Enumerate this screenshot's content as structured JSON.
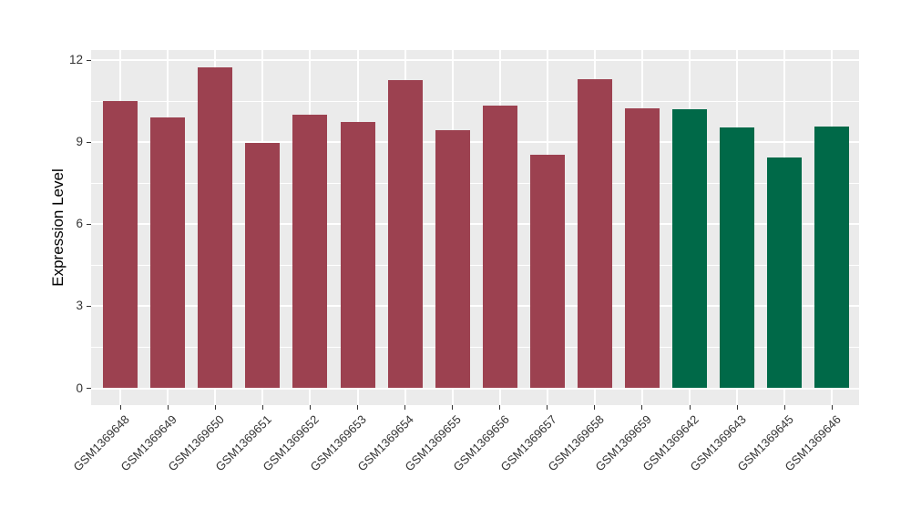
{
  "chart_data": {
    "type": "bar",
    "title": "",
    "xlabel": "",
    "ylabel": "Expression Level",
    "ylim": [
      0,
      12
    ],
    "yticks": [
      0,
      3,
      6,
      9,
      12
    ],
    "yticks_minor": [
      1.5,
      4.5,
      7.5,
      10.5
    ],
    "grid": true,
    "legend_position": "none",
    "panel_background": "#EBEBEB",
    "grid_color": "#FFFFFF",
    "tick_mark_color": "#333333",
    "tick_label_color": "#333333",
    "axis_title_color": "#000000",
    "palette": {
      "group1": "#9C4150",
      "group2": "#006948"
    },
    "categories": [
      "GSM1369648",
      "GSM1369649",
      "GSM1369650",
      "GSM1369651",
      "GSM1369652",
      "GSM1369653",
      "GSM1369654",
      "GSM1369655",
      "GSM1369656",
      "GSM1369657",
      "GSM1369658",
      "GSM1369659",
      "GSM1369642",
      "GSM1369643",
      "GSM1369645",
      "GSM1369646"
    ],
    "values": [
      10.5,
      9.9,
      11.73,
      8.97,
      10.0,
      9.75,
      11.28,
      9.45,
      10.34,
      8.54,
      11.3,
      10.25,
      10.2,
      9.55,
      8.45,
      9.56
    ],
    "bars": [
      {
        "label": "GSM1369648",
        "value": 10.5,
        "color": "#9C4150"
      },
      {
        "label": "GSM1369649",
        "value": 9.9,
        "color": "#9C4150"
      },
      {
        "label": "GSM1369650",
        "value": 11.73,
        "color": "#9C4150"
      },
      {
        "label": "GSM1369651",
        "value": 8.97,
        "color": "#9C4150"
      },
      {
        "label": "GSM1369652",
        "value": 10.0,
        "color": "#9C4150"
      },
      {
        "label": "GSM1369653",
        "value": 9.75,
        "color": "#9C4150"
      },
      {
        "label": "GSM1369654",
        "value": 11.28,
        "color": "#9C4150"
      },
      {
        "label": "GSM1369655",
        "value": 9.45,
        "color": "#9C4150"
      },
      {
        "label": "GSM1369656",
        "value": 10.34,
        "color": "#9C4150"
      },
      {
        "label": "GSM1369657",
        "value": 8.54,
        "color": "#9C4150"
      },
      {
        "label": "GSM1369658",
        "value": 11.3,
        "color": "#9C4150"
      },
      {
        "label": "GSM1369659",
        "value": 10.25,
        "color": "#9C4150"
      },
      {
        "label": "GSM1369642",
        "value": 10.2,
        "color": "#006948"
      },
      {
        "label": "GSM1369643",
        "value": 9.55,
        "color": "#006948"
      },
      {
        "label": "GSM1369645",
        "value": 8.45,
        "color": "#006948"
      },
      {
        "label": "GSM1369646",
        "value": 9.56,
        "color": "#006948"
      }
    ]
  }
}
